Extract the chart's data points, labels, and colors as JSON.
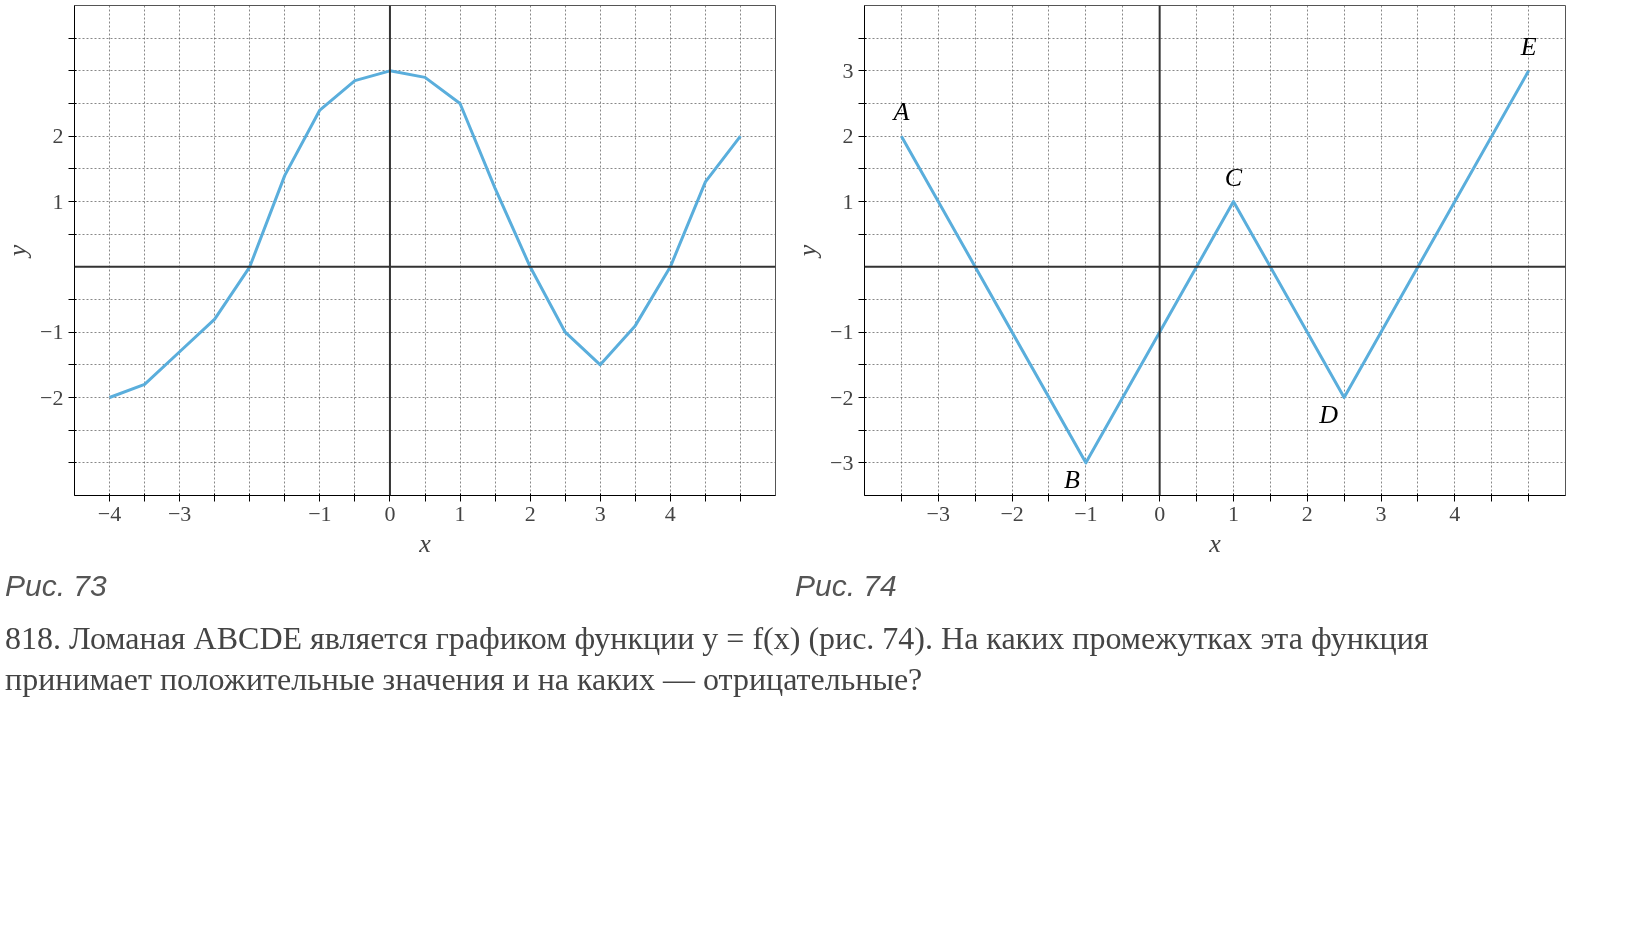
{
  "chart_data": [
    {
      "type": "line",
      "xlabel": "x",
      "ylabel": "y",
      "xlim": [
        -4.5,
        5.5
      ],
      "ylim": [
        -3.5,
        4
      ],
      "xticks": [
        {
          "value": -4,
          "label": "−4"
        },
        {
          "value": -3.5,
          "label": null
        },
        {
          "value": -3,
          "label": "−3"
        },
        {
          "value": -2.5,
          "label": null
        },
        {
          "value": -2,
          "label": null
        },
        {
          "value": -1.5,
          "label": null
        },
        {
          "value": -1,
          "label": "−1"
        },
        {
          "value": -0.5,
          "label": null
        },
        0,
        {
          "value": 0.5,
          "label": null
        },
        1,
        {
          "value": 1.5,
          "label": null
        },
        2,
        {
          "value": 2.5,
          "label": null
        },
        3,
        {
          "value": 3.5,
          "label": null
        },
        4,
        {
          "value": 4.5,
          "label": null
        },
        {
          "value": 5,
          "label": null
        }
      ],
      "yticks": [
        {
          "value": -3,
          "label": null
        },
        {
          "value": -2.5,
          "label": null
        },
        {
          "value": -2,
          "label": "−2"
        },
        {
          "value": -1.5,
          "label": null
        },
        {
          "value": -1,
          "label": "−1"
        },
        {
          "value": -0.5,
          "label": null
        },
        {
          "value": 0.5,
          "label": null
        },
        1,
        {
          "value": 1.5,
          "label": null
        },
        2,
        {
          "value": 2.5,
          "label": null
        },
        {
          "value": 3,
          "label": null
        },
        {
          "value": 3.5,
          "label": null
        }
      ],
      "grid": true,
      "x": [
        -4,
        -3.5,
        -3,
        -2.5,
        -2,
        -1.5,
        -1,
        -0.5,
        0,
        0.5,
        1,
        1.5,
        2,
        2.5,
        3,
        3.5,
        4,
        4.5,
        5
      ],
      "series": [
        {
          "color": "#5aaedc",
          "values": [
            -2,
            -1.8,
            -1.3,
            -0.8,
            0,
            1.4,
            2.4,
            2.85,
            3,
            2.9,
            2.5,
            1.2,
            0,
            -1,
            -1.5,
            -0.9,
            0,
            1.3,
            2
          ]
        }
      ],
      "annotations": [
        "Рис. 73"
      ]
    },
    {
      "type": "line",
      "xlabel": "x",
      "ylabel": "y",
      "xlim": [
        -4,
        5.5
      ],
      "ylim": [
        -3.5,
        4
      ],
      "xticks": [
        {
          "value": -3.5,
          "label": null
        },
        {
          "value": -3,
          "label": "−3"
        },
        {
          "value": -2.5,
          "label": null
        },
        {
          "value": -2,
          "label": "−2"
        },
        {
          "value": -1.5,
          "label": null
        },
        {
          "value": -1,
          "label": "−1"
        },
        {
          "value": -0.5,
          "label": null
        },
        0,
        {
          "value": 0.5,
          "label": null
        },
        1,
        {
          "value": 1.5,
          "label": null
        },
        2,
        {
          "value": 2.5,
          "label": null
        },
        3,
        {
          "value": 3.5,
          "label": null
        },
        4,
        {
          "value": 4.5,
          "label": null
        },
        {
          "value": 5,
          "label": null
        }
      ],
      "yticks": [
        {
          "value": -3,
          "label": "−3"
        },
        {
          "value": -2.5,
          "label": null
        },
        {
          "value": -2,
          "label": "−2"
        },
        {
          "value": -1.5,
          "label": null
        },
        {
          "value": -1,
          "label": "−1"
        },
        {
          "value": -0.5,
          "label": null
        },
        {
          "value": 0.5,
          "label": null
        },
        1,
        {
          "value": 1.5,
          "label": null
        },
        2,
        {
          "value": 2.5,
          "label": null
        },
        3,
        {
          "value": 3.5,
          "label": null
        }
      ],
      "grid": true,
      "x": [
        -3.5,
        -1,
        1,
        2.5,
        5
      ],
      "series": [
        {
          "color": "#5aaedc",
          "values": [
            2,
            -3,
            1,
            -2,
            3
          ]
        }
      ],
      "annotations": [
        "Рис. 74",
        {
          "text": "A",
          "x": -3.5,
          "y": 2
        },
        {
          "text": "B",
          "x": -1,
          "y": -3
        },
        {
          "text": "C",
          "x": 1,
          "y": 1
        },
        {
          "text": "D",
          "x": 2.5,
          "y": -2
        },
        {
          "text": "E",
          "x": 5,
          "y": 3
        },
        "818. Ломаная ABCDE является графиком функции y = f(x) (рис. 74). На каких промежутках эта функция принимает положительные значения и на каких — отрицательные?"
      ]
    }
  ]
}
